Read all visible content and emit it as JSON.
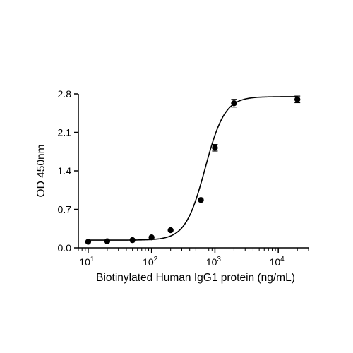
{
  "chart_data": {
    "type": "scatter",
    "xlabel": "Biotinylated Human IgG1 protein (ng/mL)",
    "ylabel": "OD 450nm",
    "x_scale": "log",
    "xlim": [
      7,
      30000
    ],
    "ylim": [
      0,
      2.8
    ],
    "y_ticks": [
      "0.0",
      "0.7",
      "1.4",
      "2.1",
      "2.8"
    ],
    "x_ticks": [
      {
        "value": 10,
        "base": "10",
        "exp": "1"
      },
      {
        "value": 100,
        "base": "10",
        "exp": "2"
      },
      {
        "value": 1000,
        "base": "10",
        "exp": "3"
      },
      {
        "value": 10000,
        "base": "10",
        "exp": "4"
      }
    ],
    "points": [
      {
        "x": 10,
        "y": 0.11,
        "err": 0
      },
      {
        "x": 20,
        "y": 0.12,
        "err": 0
      },
      {
        "x": 50,
        "y": 0.14,
        "err": 0
      },
      {
        "x": 100,
        "y": 0.19,
        "err": 0
      },
      {
        "x": 200,
        "y": 0.32,
        "err": 0
      },
      {
        "x": 600,
        "y": 0.87,
        "err": 0
      },
      {
        "x": 1000,
        "y": 1.82,
        "err": 0.06
      },
      {
        "x": 2000,
        "y": 2.63,
        "err": 0.07
      },
      {
        "x": 20000,
        "y": 2.7,
        "err": 0.06
      }
    ],
    "fit": {
      "model": "4PL",
      "bottom": 0.14,
      "top": 2.75,
      "ec50": 700,
      "hill": 2.8
    },
    "grid": false,
    "legend": "none"
  }
}
